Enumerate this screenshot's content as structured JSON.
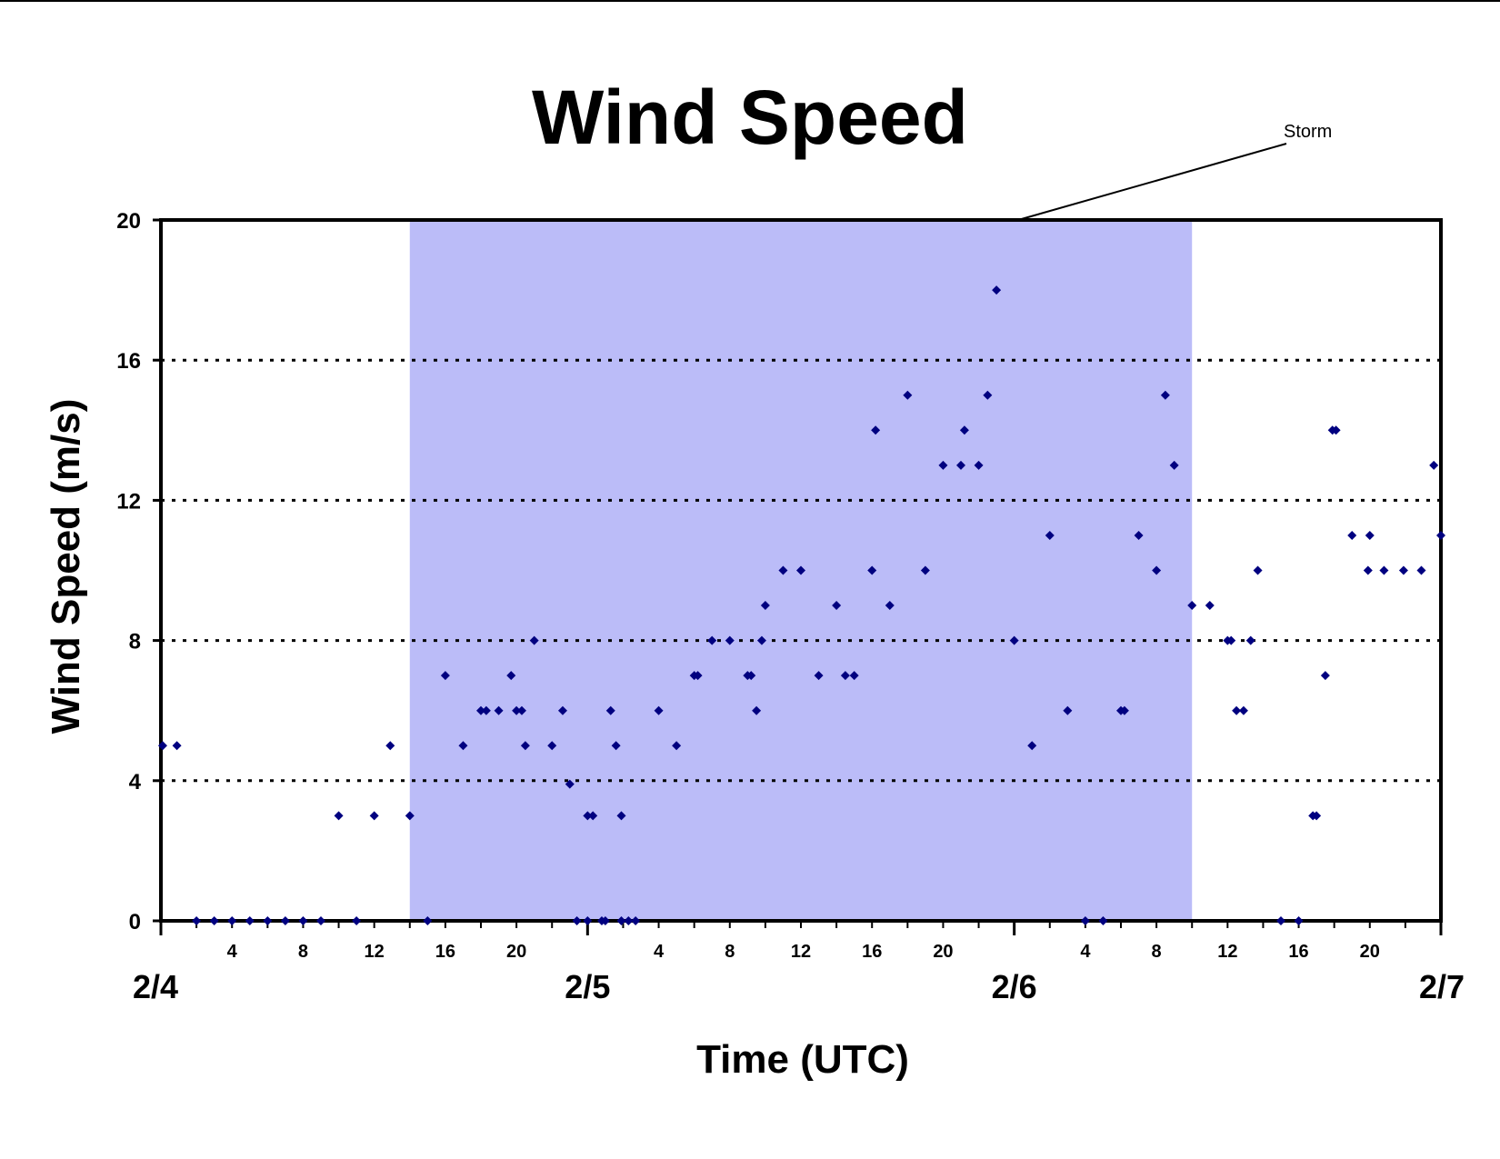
{
  "chart_data": {
    "type": "scatter",
    "title": "Wind Speed",
    "xlabel": "Time (UTC)",
    "ylabel": "Wind Speed (m/s)",
    "ylim": [
      0,
      20
    ],
    "yticks": [
      0,
      4,
      8,
      12,
      16,
      20
    ],
    "xlim_hours": [
      0,
      72
    ],
    "hour_ticks": [
      4,
      8,
      12,
      16,
      20
    ],
    "date_ticks": [
      "2/4",
      "2/5",
      "2/6",
      "2/7"
    ],
    "grid": "dotted horizontal",
    "marker_color": "#000080",
    "shade_color": "#bbbcf8",
    "storm_period_hours": [
      14,
      58
    ],
    "annotation": {
      "text": "Storm"
    },
    "points": [
      [
        0.1,
        5
      ],
      [
        0.9,
        5
      ],
      [
        2,
        0
      ],
      [
        3,
        0
      ],
      [
        4,
        0
      ],
      [
        5,
        0
      ],
      [
        6,
        0
      ],
      [
        7,
        0
      ],
      [
        8,
        0
      ],
      [
        9,
        0
      ],
      [
        10,
        3
      ],
      [
        11,
        0
      ],
      [
        12,
        3
      ],
      [
        12.9,
        5
      ],
      [
        14,
        3
      ],
      [
        15,
        0
      ],
      [
        16,
        7
      ],
      [
        17,
        5
      ],
      [
        18,
        6
      ],
      [
        18.3,
        6
      ],
      [
        19,
        6
      ],
      [
        19.7,
        7
      ],
      [
        20,
        6
      ],
      [
        20.3,
        6
      ],
      [
        20.5,
        5
      ],
      [
        21,
        8
      ],
      [
        22,
        5
      ],
      [
        22.6,
        6
      ],
      [
        23,
        3.9
      ],
      [
        23.4,
        0
      ],
      [
        24,
        0
      ],
      [
        24,
        3
      ],
      [
        24.3,
        3
      ],
      [
        24.8,
        0
      ],
      [
        25,
        0
      ],
      [
        25.3,
        6
      ],
      [
        25.6,
        5
      ],
      [
        25.9,
        3
      ],
      [
        25.9,
        0
      ],
      [
        26.3,
        0
      ],
      [
        26.7,
        0
      ],
      [
        28,
        6
      ],
      [
        29,
        5
      ],
      [
        30,
        7
      ],
      [
        30.2,
        7
      ],
      [
        31,
        8
      ],
      [
        32,
        8
      ],
      [
        33,
        7
      ],
      [
        33.2,
        7
      ],
      [
        33.5,
        6
      ],
      [
        33.8,
        8
      ],
      [
        34,
        9
      ],
      [
        35,
        10
      ],
      [
        36,
        10
      ],
      [
        37,
        7
      ],
      [
        38,
        9
      ],
      [
        38.5,
        7
      ],
      [
        39,
        7
      ],
      [
        40,
        10
      ],
      [
        40.2,
        14
      ],
      [
        41,
        9
      ],
      [
        42,
        15
      ],
      [
        43,
        10
      ],
      [
        44,
        13
      ],
      [
        45,
        13
      ],
      [
        45.2,
        14
      ],
      [
        46,
        13
      ],
      [
        46.5,
        15
      ],
      [
        47,
        18
      ],
      [
        48,
        8
      ],
      [
        49,
        5
      ],
      [
        50,
        11
      ],
      [
        51,
        6
      ],
      [
        52,
        0
      ],
      [
        53,
        0
      ],
      [
        54,
        6
      ],
      [
        54.2,
        6
      ],
      [
        55,
        11
      ],
      [
        56,
        10
      ],
      [
        56.5,
        15
      ],
      [
        57,
        13
      ],
      [
        58,
        9
      ],
      [
        59,
        9
      ],
      [
        60,
        8
      ],
      [
        60.2,
        8
      ],
      [
        60.5,
        6
      ],
      [
        60.9,
        6
      ],
      [
        61.3,
        8
      ],
      [
        61.7,
        10
      ],
      [
        63,
        0
      ],
      [
        64,
        0
      ],
      [
        64.8,
        3
      ],
      [
        65,
        3
      ],
      [
        65.5,
        7
      ],
      [
        65.9,
        14
      ],
      [
        66.1,
        14
      ],
      [
        67,
        11
      ],
      [
        67.9,
        10
      ],
      [
        68,
        11
      ],
      [
        68.8,
        10
      ],
      [
        69.9,
        10
      ],
      [
        70.9,
        10
      ],
      [
        71.6,
        13
      ],
      [
        72,
        11
      ]
    ]
  }
}
